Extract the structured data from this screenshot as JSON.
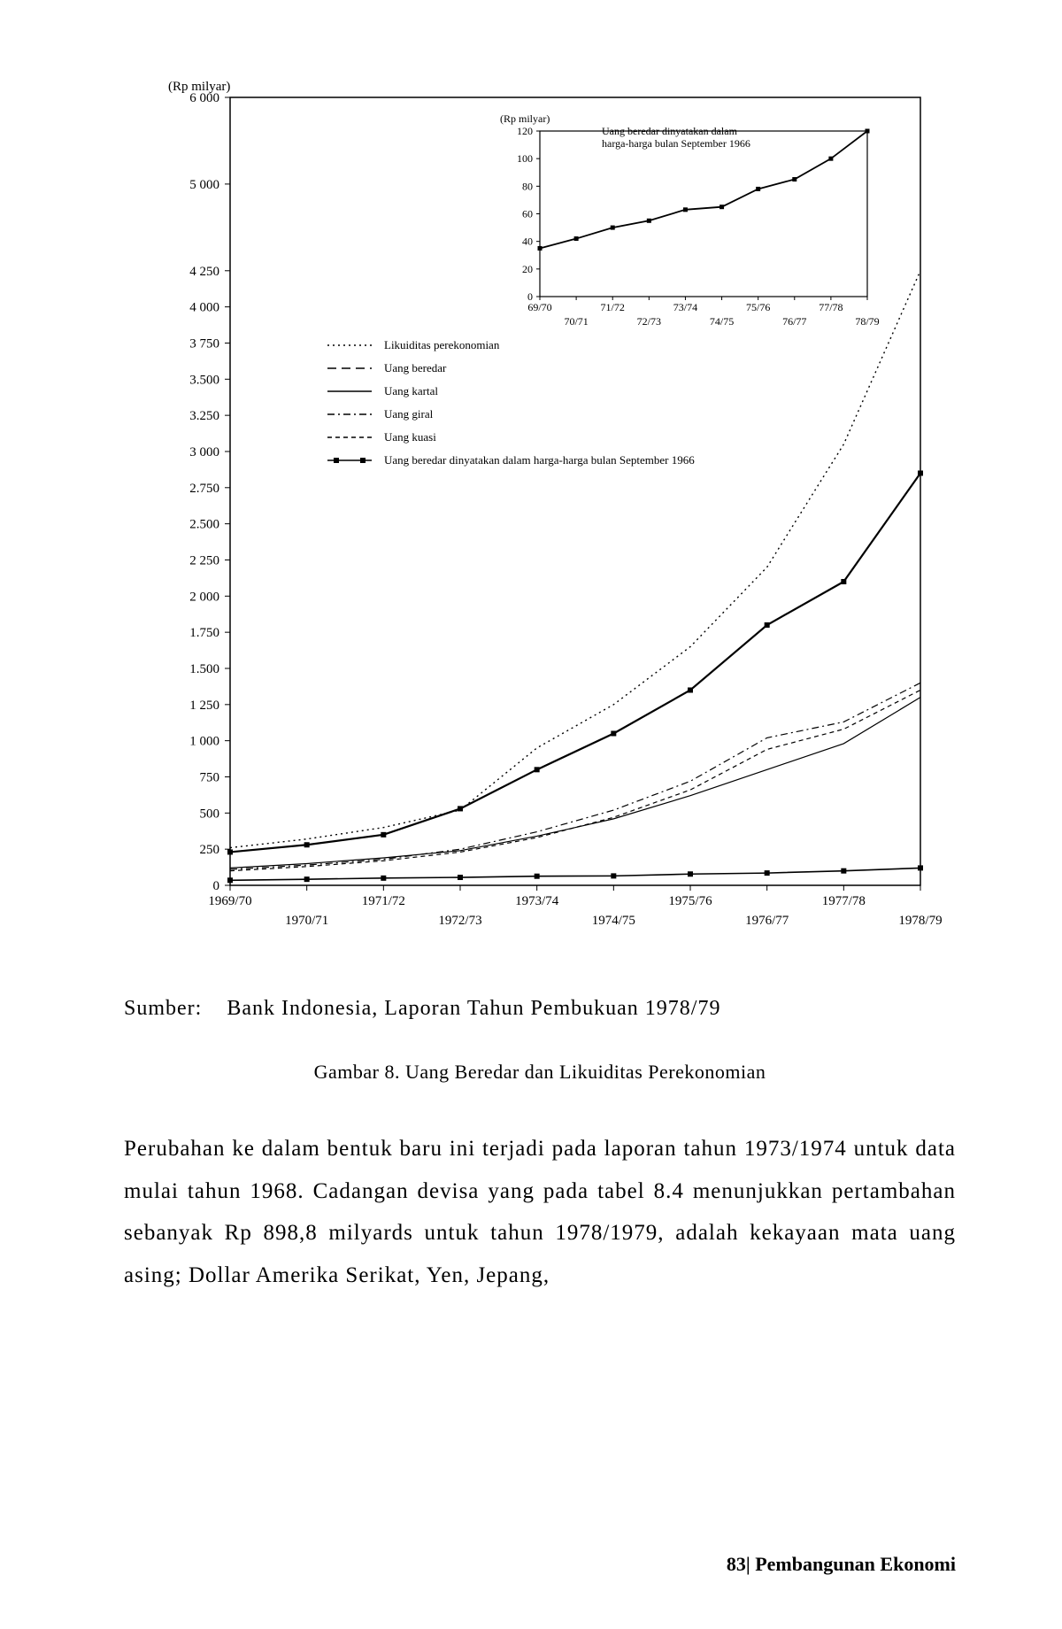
{
  "page_footer": "83| Pembangunan Ekonomi",
  "source_label": "Sumber:",
  "source_text": "Bank Indonesia, Laporan Tahun Pembukuan 1978/79",
  "caption": "Gambar 8. Uang Beredar dan Likuiditas Perekonomian",
  "body": "Perubahan ke dalam bentuk baru ini terjadi pada laporan tahun 1973/1974 untuk data mulai tahun 1968. Cadangan devisa yang pada tabel 8.4 menunjukkan pertambahan sebanyak Rp 898,8 milyards untuk tahun 1978/1979, adalah kekayaan mata uang asing; Dollar Amerika Serikat, Yen, Jepang,",
  "main_chart": {
    "type": "line",
    "y_axis_label": "(Rp milyar)",
    "background_color": "#ffffff",
    "axis_color": "#000000",
    "label_fontsize": 15,
    "xlim": [
      0,
      9
    ],
    "ylim": [
      0,
      6000
    ],
    "y_ticks": [
      0,
      250,
      500,
      750,
      1000,
      1250,
      1500,
      1750,
      2000,
      2250,
      2500,
      2750,
      3000,
      3250,
      3500,
      3750,
      4000,
      4250,
      5000,
      6000
    ],
    "y_tick_labels": [
      "0",
      "250",
      "500",
      "750",
      "1 000",
      "1 250",
      "1.500",
      "1.750",
      "2 000",
      "2 250",
      "2.500",
      "2.750",
      "3 000",
      "3.250",
      "3.500",
      "3 750",
      "4 000",
      "4 250",
      "5 000",
      "6 000"
    ],
    "x_categories": [
      "1969/70",
      "1970/71",
      "1971/72",
      "1972/73",
      "1973/74",
      "1974/75",
      "1975/76",
      "1976/77",
      "1977/78",
      "1978/79"
    ],
    "x_label_row": [
      0,
      1,
      0,
      1,
      0,
      1,
      0,
      1,
      0,
      1
    ],
    "legend": [
      {
        "swatch": "dotted",
        "label": "Likuiditas perekonomian"
      },
      {
        "swatch": "longdash",
        "label": "Uang beredar"
      },
      {
        "swatch": "solid",
        "label": "Uang kartal"
      },
      {
        "swatch": "dashdot",
        "label": "Uang giral"
      },
      {
        "swatch": "shortdash",
        "label": "Uang kuasi"
      },
      {
        "swatch": "marker",
        "label": "Uang beredar dinyatakan dalam harga-harga bulan September 1966"
      }
    ],
    "series": [
      {
        "name": "likuiditas",
        "style": "dotted",
        "color": "#000000",
        "width": 1.4,
        "values": [
          260,
          320,
          400,
          520,
          950,
          1250,
          1650,
          2200,
          3050,
          4250
        ]
      },
      {
        "name": "uang_beredar",
        "style": "solid_heavy",
        "color": "#000000",
        "width": 2.2,
        "values": [
          230,
          280,
          350,
          530,
          800,
          1050,
          1350,
          1800,
          2100,
          2850
        ],
        "markers": true
      },
      {
        "name": "uang_kartal",
        "style": "solid",
        "color": "#000000",
        "width": 1.2,
        "values": [
          120,
          150,
          190,
          240,
          340,
          460,
          620,
          800,
          980,
          1300
        ]
      },
      {
        "name": "uang_giral",
        "style": "dashdot",
        "color": "#000000",
        "width": 1.2,
        "values": [
          110,
          140,
          180,
          250,
          370,
          520,
          720,
          1020,
          1130,
          1400
        ]
      },
      {
        "name": "uang_kuasi",
        "style": "shortdash",
        "color": "#000000",
        "width": 1.2,
        "values": [
          100,
          130,
          170,
          230,
          330,
          470,
          660,
          940,
          1080,
          1350
        ]
      },
      {
        "name": "uang_beredar_deflated",
        "style": "marker_line",
        "color": "#000000",
        "width": 1.6,
        "values": [
          35,
          42,
          50,
          55,
          63,
          65,
          78,
          85,
          100,
          120
        ],
        "markers": true
      }
    ]
  },
  "inset_chart": {
    "type": "line",
    "y_axis_label": "(Rp milyar)",
    "note": "Uang beredar dinyatakan dalam harga-harga bulan September 1966",
    "background_color": "#ffffff",
    "axis_color": "#000000",
    "xlim": [
      0,
      9
    ],
    "ylim": [
      0,
      120
    ],
    "y_ticks": [
      0,
      20,
      40,
      60,
      80,
      100,
      120
    ],
    "y_tick_labels": [
      "0",
      "20",
      "40",
      "60",
      "80",
      "100",
      "120"
    ],
    "x_categories": [
      "69/70",
      "70/71",
      "71/72",
      "72/73",
      "73/74",
      "74/75",
      "75/76",
      "76/77",
      "77/78",
      "78/79"
    ],
    "x_label_row": [
      0,
      1,
      0,
      1,
      0,
      1,
      0,
      1,
      0,
      1
    ],
    "series": {
      "color": "#000000",
      "width": 1.8,
      "markers": true,
      "values": [
        35,
        42,
        50,
        55,
        63,
        65,
        78,
        85,
        100,
        120
      ]
    }
  }
}
